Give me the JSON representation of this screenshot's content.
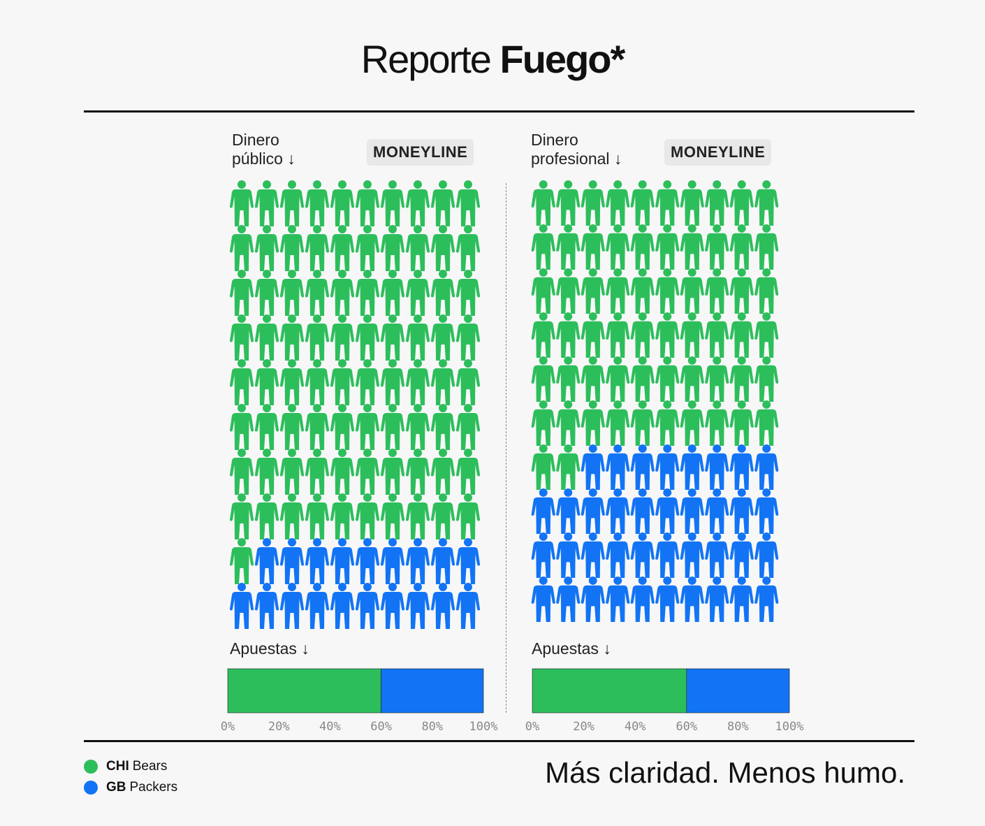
{
  "title": {
    "light": "Reporte",
    "bold": "Fuego*"
  },
  "colors": {
    "bears": "#2dbe5c",
    "packers": "#1274f5",
    "tick": "#888888"
  },
  "legend": [
    {
      "abbr": "CHI",
      "name": "Bears",
      "color": "#2dbe5c"
    },
    {
      "abbr": "GB",
      "name": "Packers",
      "color": "#1274f5"
    }
  ],
  "tagline": "Más claridad. Menos humo.",
  "panels": [
    {
      "label_line1": "Dinero",
      "label_line2": "público",
      "chip": "MONEYLINE",
      "bets_label": "Apuestas",
      "ticks": [
        "0%",
        "20%",
        "40%",
        "60%",
        "80%",
        "100%"
      ]
    },
    {
      "label_line1": "Dinero",
      "label_line2": "profesional",
      "chip": "MONEYLINE",
      "bets_label": "Apuestas",
      "ticks": [
        "0%",
        "20%",
        "40%",
        "60%",
        "80%",
        "100%"
      ]
    }
  ],
  "chart_data": [
    {
      "type": "pictogram",
      "title": "Dinero público",
      "subtitle": "MONEYLINE",
      "total_icons": 100,
      "series": [
        {
          "name": "CHI Bears",
          "value": 81
        },
        {
          "name": "GB Packers",
          "value": 19
        }
      ]
    },
    {
      "type": "pictogram",
      "title": "Dinero profesional",
      "subtitle": "MONEYLINE",
      "total_icons": 100,
      "series": [
        {
          "name": "CHI Bears",
          "value": 62
        },
        {
          "name": "GB Packers",
          "value": 38
        }
      ]
    },
    {
      "type": "bar",
      "orientation": "horizontal-stacked",
      "title": "Apuestas",
      "xlim": [
        0,
        100
      ],
      "series": [
        {
          "name": "CHI Bears",
          "value": 60
        },
        {
          "name": "GB Packers",
          "value": 40
        }
      ]
    },
    {
      "type": "bar",
      "orientation": "horizontal-stacked",
      "title": "Apuestas",
      "xlim": [
        0,
        100
      ],
      "series": [
        {
          "name": "CHI Bears",
          "value": 60
        },
        {
          "name": "GB Packers",
          "value": 40
        }
      ]
    }
  ]
}
